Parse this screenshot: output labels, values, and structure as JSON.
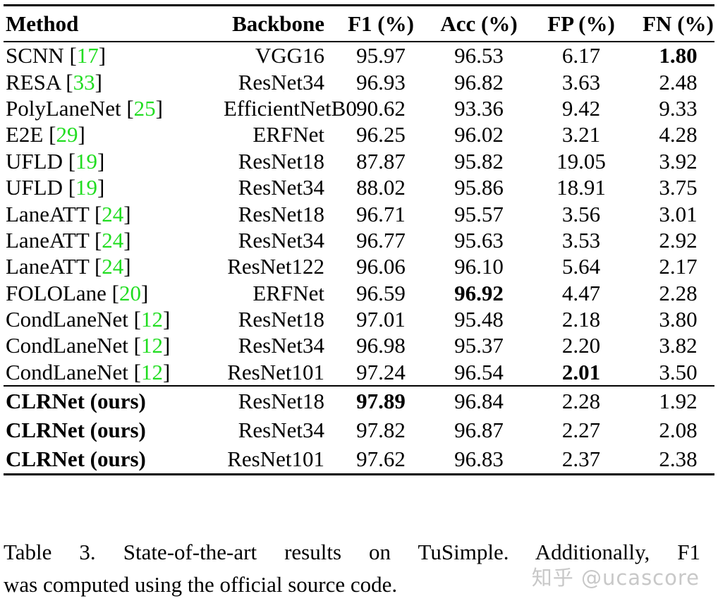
{
  "colors": {
    "citation_green": "#21dd21",
    "watermark_gray": "#c8c8c8",
    "rule_black": "#000000"
  },
  "table": {
    "headers": [
      {
        "label": "Method"
      },
      {
        "label": "Backbone"
      },
      {
        "label": "F1 (%)"
      },
      {
        "label": "Acc (%)"
      },
      {
        "label": "FP (%)"
      },
      {
        "label": "FN (%)"
      }
    ],
    "rows": [
      {
        "group": "sota",
        "method": "SCNN",
        "cite": "17",
        "method_bold": false,
        "cells": [
          {
            "t": "VGG16"
          },
          {
            "t": "95.97"
          },
          {
            "t": "96.53"
          },
          {
            "t": "6.17"
          },
          {
            "t": "1.80",
            "b": true
          }
        ]
      },
      {
        "group": "sota",
        "method": "RESA",
        "cite": "33",
        "method_bold": false,
        "cells": [
          {
            "t": "ResNet34"
          },
          {
            "t": "96.93"
          },
          {
            "t": "96.82"
          },
          {
            "t": "3.63"
          },
          {
            "t": "2.48"
          }
        ]
      },
      {
        "group": "sota",
        "method": "PolyLaneNet",
        "cite": "25",
        "method_bold": false,
        "cells": [
          {
            "t": "EfficientNetB0"
          },
          {
            "t": "90.62"
          },
          {
            "t": "93.36"
          },
          {
            "t": "9.42"
          },
          {
            "t": "9.33"
          }
        ]
      },
      {
        "group": "sota",
        "method": "E2E",
        "cite": "29",
        "method_bold": false,
        "cells": [
          {
            "t": "ERFNet"
          },
          {
            "t": "96.25"
          },
          {
            "t": "96.02"
          },
          {
            "t": "3.21"
          },
          {
            "t": "4.28"
          }
        ]
      },
      {
        "group": "sota",
        "method": "UFLD",
        "cite": "19",
        "method_bold": false,
        "cells": [
          {
            "t": "ResNet18"
          },
          {
            "t": "87.87"
          },
          {
            "t": "95.82"
          },
          {
            "t": "19.05"
          },
          {
            "t": "3.92"
          }
        ]
      },
      {
        "group": "sota",
        "method": "UFLD",
        "cite": "19",
        "method_bold": false,
        "cells": [
          {
            "t": "ResNet34"
          },
          {
            "t": "88.02"
          },
          {
            "t": "95.86"
          },
          {
            "t": "18.91"
          },
          {
            "t": "3.75"
          }
        ]
      },
      {
        "group": "sota",
        "method": "LaneATT",
        "cite": "24",
        "method_bold": false,
        "cells": [
          {
            "t": "ResNet18"
          },
          {
            "t": "96.71"
          },
          {
            "t": "95.57"
          },
          {
            "t": "3.56"
          },
          {
            "t": "3.01"
          }
        ]
      },
      {
        "group": "sota",
        "method": "LaneATT",
        "cite": "24",
        "method_bold": false,
        "cells": [
          {
            "t": "ResNet34"
          },
          {
            "t": "96.77"
          },
          {
            "t": "95.63"
          },
          {
            "t": "3.53"
          },
          {
            "t": "2.92"
          }
        ]
      },
      {
        "group": "sota",
        "method": "LaneATT",
        "cite": "24",
        "method_bold": false,
        "cells": [
          {
            "t": "ResNet122"
          },
          {
            "t": "96.06"
          },
          {
            "t": "96.10"
          },
          {
            "t": "5.64"
          },
          {
            "t": "2.17"
          }
        ]
      },
      {
        "group": "sota",
        "method": "FOLOLane",
        "cite": "20",
        "method_bold": false,
        "cells": [
          {
            "t": "ERFNet"
          },
          {
            "t": "96.59"
          },
          {
            "t": "96.92",
            "b": true
          },
          {
            "t": "4.47"
          },
          {
            "t": "2.28"
          }
        ]
      },
      {
        "group": "sota",
        "method": "CondLaneNet",
        "cite": "12",
        "method_bold": false,
        "cells": [
          {
            "t": "ResNet18"
          },
          {
            "t": "97.01"
          },
          {
            "t": "95.48"
          },
          {
            "t": "2.18"
          },
          {
            "t": "3.80"
          }
        ]
      },
      {
        "group": "sota",
        "method": "CondLaneNet",
        "cite": "12",
        "method_bold": false,
        "cells": [
          {
            "t": "ResNet34"
          },
          {
            "t": "96.98"
          },
          {
            "t": "95.37"
          },
          {
            "t": "2.20"
          },
          {
            "t": "3.82"
          }
        ]
      },
      {
        "group": "sota",
        "method": "CondLaneNet",
        "cite": "12",
        "method_bold": false,
        "cells": [
          {
            "t": "ResNet101"
          },
          {
            "t": "97.24"
          },
          {
            "t": "96.54"
          },
          {
            "t": "2.01",
            "b": true
          },
          {
            "t": "3.50"
          }
        ]
      },
      {
        "group": "ours",
        "method": "CLRNet (ours)",
        "cite": null,
        "method_bold": true,
        "cells": [
          {
            "t": "ResNet18"
          },
          {
            "t": "97.89",
            "b": true
          },
          {
            "t": "96.84"
          },
          {
            "t": "2.28"
          },
          {
            "t": "1.92"
          }
        ]
      },
      {
        "group": "ours",
        "method": "CLRNet (ours)",
        "cite": null,
        "method_bold": true,
        "cells": [
          {
            "t": "ResNet34"
          },
          {
            "t": "97.82"
          },
          {
            "t": "96.87"
          },
          {
            "t": "2.27"
          },
          {
            "t": "2.08"
          }
        ]
      },
      {
        "group": "ours",
        "method": "CLRNet (ours)",
        "cite": null,
        "method_bold": true,
        "cells": [
          {
            "t": "ResNet101"
          },
          {
            "t": "97.62"
          },
          {
            "t": "96.83"
          },
          {
            "t": "2.37"
          },
          {
            "t": "2.38"
          }
        ]
      }
    ]
  },
  "caption": {
    "line1": "Table 3.  State-of-the-art results on TuSimple.  Additionally, F1",
    "line2": "was computed using the official source code."
  },
  "watermark": {
    "text": "知乎 @ucascore"
  }
}
